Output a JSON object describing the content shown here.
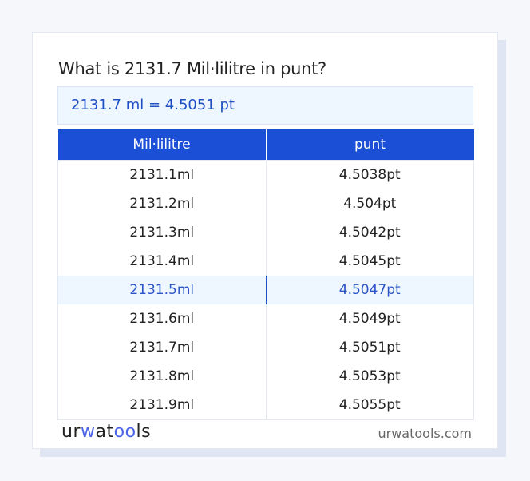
{
  "title": "What is 2131.7 Mil·lilitre in punt?",
  "result": "2131.7 ml = 4.5051 pt",
  "table": {
    "headers": [
      "Mil·lilitre",
      "punt"
    ],
    "rows": [
      [
        "2131.1ml",
        "4.5038pt"
      ],
      [
        "2131.2ml",
        "4.504pt"
      ],
      [
        "2131.3ml",
        "4.5042pt"
      ],
      [
        "2131.4ml",
        "4.5045pt"
      ],
      [
        "2131.5ml",
        "4.5047pt"
      ],
      [
        "2131.6ml",
        "4.5049pt"
      ],
      [
        "2131.7ml",
        "4.5051pt"
      ],
      [
        "2131.8ml",
        "4.5053pt"
      ],
      [
        "2131.9ml",
        "4.5055pt"
      ]
    ],
    "highlighted_row": 4
  },
  "footer": {
    "logo": "urwatools",
    "logo_parts": [
      "ur",
      "w",
      "at",
      "oo",
      "ls"
    ],
    "site": "urwatools.com"
  },
  "colors": {
    "accent": "#1a4fd6",
    "highlight_bg": "#eef6ff",
    "logo_accent": "#4a63e8"
  }
}
